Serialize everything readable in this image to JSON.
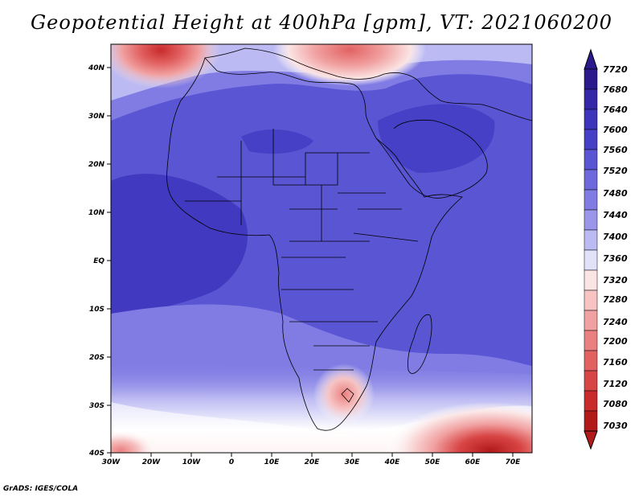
{
  "title": "Geopotential Height at 400hPa [gpm], VT: 2021060200",
  "credit": "GrADS: IGES/COLA",
  "map": {
    "lon_labels": [
      "30W",
      "20W",
      "10W",
      "0",
      "10E",
      "20E",
      "30E",
      "40E",
      "50E",
      "60E",
      "70E"
    ],
    "lat_labels": [
      "40N",
      "30N",
      "20N",
      "10N",
      "EQ",
      "10S",
      "20S",
      "30S",
      "40S"
    ]
  },
  "colorbar": {
    "levels": [
      "7720",
      "7680",
      "7640",
      "7600",
      "7560",
      "7520",
      "7480",
      "7440",
      "7400",
      "7360",
      "7320",
      "7280",
      "7240",
      "7200",
      "7160",
      "7120",
      "7080",
      "7030"
    ],
    "colors": [
      "#2a1a8c",
      "#3528a8",
      "#3d35bb",
      "#4540c6",
      "#5a55d3",
      "#6d69dc",
      "#807ce4",
      "#9a97ea",
      "#bcbaf2",
      "#e2e1fa",
      "#fbe4e4",
      "#f7c3c3",
      "#f1a1a1",
      "#ea8080",
      "#e26262",
      "#d84545",
      "#c92a2a",
      "#b31a1a"
    ]
  }
}
